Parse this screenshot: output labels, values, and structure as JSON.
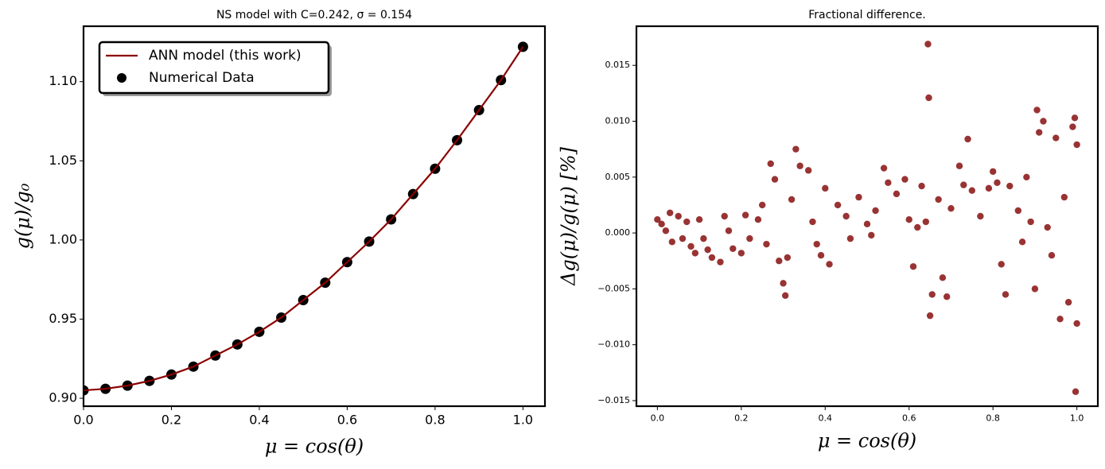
{
  "chart_data": [
    {
      "type": "line",
      "title": "NS model with C=0.242, σ = 0.154",
      "xlabel": "μ = cos(θ)",
      "ylabel": "g(μ)/g₀",
      "x": [
        0,
        0.05,
        0.1,
        0.15,
        0.2,
        0.25,
        0.3,
        0.35,
        0.4,
        0.45,
        0.5,
        0.55,
        0.6,
        0.65,
        0.7,
        0.75,
        0.8,
        0.85,
        0.9,
        0.95,
        1.0
      ],
      "series": [
        {
          "name": "ANN model (this work)",
          "style": "line",
          "color": "#8b0000",
          "values": [
            0.905,
            0.906,
            0.908,
            0.911,
            0.915,
            0.92,
            0.927,
            0.934,
            0.942,
            0.951,
            0.962,
            0.973,
            0.986,
            0.999,
            1.013,
            1.029,
            1.045,
            1.063,
            1.082,
            1.101,
            1.122
          ]
        },
        {
          "name": "Numerical Data",
          "style": "scatter",
          "color": "#000000",
          "values": [
            0.905,
            0.906,
            0.908,
            0.911,
            0.915,
            0.92,
            0.927,
            0.934,
            0.942,
            0.951,
            0.962,
            0.973,
            0.986,
            0.999,
            1.013,
            1.029,
            1.045,
            1.063,
            1.082,
            1.101,
            1.122
          ]
        }
      ],
      "xlim": [
        0,
        1.05
      ],
      "xticks": [
        {
          "value": 0,
          "label": "0.0"
        },
        0.2,
        0.4,
        0.6,
        0.8,
        {
          "value": 1,
          "label": "1.0"
        }
      ],
      "ylim": [
        0.895,
        1.135
      ],
      "yticks": [
        {
          "value": 0.9,
          "label": "0.90"
        },
        0.95,
        {
          "value": 1,
          "label": "1.00"
        },
        1.05,
        {
          "value": 1.1,
          "label": "1.10"
        }
      ],
      "legend": "upper left"
    },
    {
      "type": "scatter",
      "title": "Fractional difference.",
      "xlabel": "μ = cos(θ)",
      "ylabel": "Δg(μ)/g(μ)  [%]",
      "color": "#800000",
      "x": [
        0.0,
        0.01,
        0.02,
        0.03,
        0.035,
        0.05,
        0.06,
        0.07,
        0.08,
        0.09,
        0.1,
        0.11,
        0.12,
        0.13,
        0.15,
        0.16,
        0.17,
        0.18,
        0.2,
        0.21,
        0.22,
        0.24,
        0.25,
        0.26,
        0.27,
        0.28,
        0.29,
        0.3,
        0.305,
        0.31,
        0.32,
        0.33,
        0.34,
        0.36,
        0.37,
        0.38,
        0.39,
        0.4,
        0.41,
        0.43,
        0.45,
        0.46,
        0.48,
        0.5,
        0.51,
        0.52,
        0.54,
        0.55,
        0.57,
        0.59,
        0.6,
        0.61,
        0.62,
        0.63,
        0.64,
        0.645,
        0.647,
        0.65,
        0.655,
        0.67,
        0.68,
        0.69,
        0.7,
        0.72,
        0.73,
        0.74,
        0.75,
        0.77,
        0.79,
        0.8,
        0.81,
        0.82,
        0.83,
        0.84,
        0.86,
        0.87,
        0.88,
        0.89,
        0.9,
        0.905,
        0.91,
        0.92,
        0.93,
        0.94,
        0.95,
        0.96,
        0.97,
        0.98,
        0.99,
        0.995,
        1.0,
        1.0,
        0.997
      ],
      "values": [
        0.0012,
        0.0008,
        0.0002,
        0.0018,
        -0.0008,
        0.0015,
        -0.0005,
        0.001,
        -0.0012,
        -0.0018,
        0.0012,
        -0.0005,
        -0.0015,
        -0.0022,
        -0.0026,
        0.0015,
        0.0002,
        -0.0014,
        -0.0018,
        0.0016,
        -0.0005,
        0.0012,
        0.0025,
        -0.001,
        0.0062,
        0.0048,
        -0.0025,
        -0.0045,
        -0.0056,
        -0.0022,
        0.003,
        0.0075,
        0.006,
        0.0056,
        0.001,
        -0.001,
        -0.002,
        0.004,
        -0.0028,
        0.0025,
        0.0015,
        -0.0005,
        0.0032,
        0.0008,
        -0.0002,
        0.002,
        0.0058,
        0.0045,
        0.0035,
        0.0048,
        0.0012,
        -0.003,
        0.0005,
        0.0042,
        0.001,
        0.0169,
        0.0121,
        -0.0074,
        -0.0055,
        0.003,
        -0.004,
        -0.0057,
        0.0022,
        0.006,
        0.0043,
        0.0084,
        0.0038,
        0.0015,
        0.004,
        0.0055,
        0.0045,
        -0.0028,
        -0.0055,
        0.0042,
        0.002,
        -0.0008,
        0.005,
        0.001,
        -0.005,
        0.011,
        0.009,
        0.01,
        0.0005,
        -0.002,
        0.0085,
        -0.0077,
        0.0032,
        -0.0062,
        0.0095,
        0.0103,
        0.0079,
        -0.0081,
        -0.0142
      ],
      "xlim": [
        -0.05,
        1.05
      ],
      "xticks": [
        {
          "value": 0,
          "label": "0.0"
        },
        0.2,
        0.4,
        0.6,
        0.8,
        {
          "value": 1,
          "label": "1.0"
        }
      ],
      "ylim": [
        -0.0155,
        0.0185
      ],
      "yticks": [
        {
          "value": -0.015,
          "label": "−0.015"
        },
        {
          "value": -0.01,
          "label": "−0.010"
        },
        {
          "value": -0.005,
          "label": "−0.005"
        },
        {
          "value": 0,
          "label": "0.000"
        },
        0.005,
        {
          "value": 0.01,
          "label": "0.010"
        },
        0.015
      ]
    }
  ]
}
